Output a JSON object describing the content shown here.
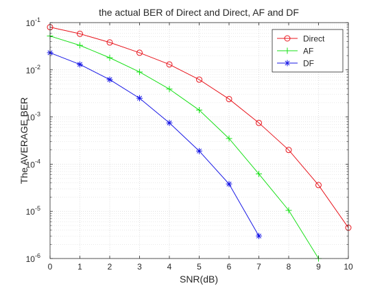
{
  "chart_data": {
    "type": "line",
    "title": "the actual BER of Direct and Direct, AF and DF",
    "xlabel": "SNR(dB)",
    "ylabel": "The AVERAGE BER",
    "xlim": [
      0,
      10
    ],
    "ylim": [
      1e-06,
      0.1
    ],
    "yscale": "log",
    "grid": true,
    "minor_grid": true,
    "legend_position": "top-right",
    "x_ticks": [
      "0",
      "1",
      "2",
      "3",
      "4",
      "5",
      "6",
      "7",
      "8",
      "9",
      "10"
    ],
    "y_ticks": [
      {
        "base": "10",
        "exp": "-6"
      },
      {
        "base": "10",
        "exp": "-5"
      },
      {
        "base": "10",
        "exp": "-4"
      },
      {
        "base": "10",
        "exp": "-3"
      },
      {
        "base": "10",
        "exp": "-2"
      },
      {
        "base": "10",
        "exp": "-1"
      }
    ],
    "series": [
      {
        "name": "Direct",
        "color": "#e8141c",
        "marker": "circle",
        "x": [
          0,
          1,
          2,
          3,
          4,
          5,
          6,
          7,
          8,
          9,
          10
        ],
        "y": [
          0.08,
          0.058,
          0.038,
          0.023,
          0.013,
          0.0062,
          0.0024,
          0.00075,
          0.0002,
          3.6e-05,
          4.5e-06
        ]
      },
      {
        "name": "AF",
        "color": "#16e016",
        "marker": "plus",
        "x": [
          0,
          1,
          2,
          3,
          4,
          5,
          6,
          7,
          8,
          9
        ],
        "y": [
          0.052,
          0.033,
          0.018,
          0.009,
          0.0039,
          0.0014,
          0.00035,
          6.2e-05,
          1.05e-05,
          1e-06
        ]
      },
      {
        "name": "DF",
        "color": "#1515e6",
        "marker": "asterisk",
        "x": [
          0,
          1,
          2,
          3,
          4,
          5,
          6,
          7
        ],
        "y": [
          0.023,
          0.013,
          0.0062,
          0.0025,
          0.00075,
          0.00019,
          3.8e-05,
          3e-06
        ]
      }
    ]
  }
}
